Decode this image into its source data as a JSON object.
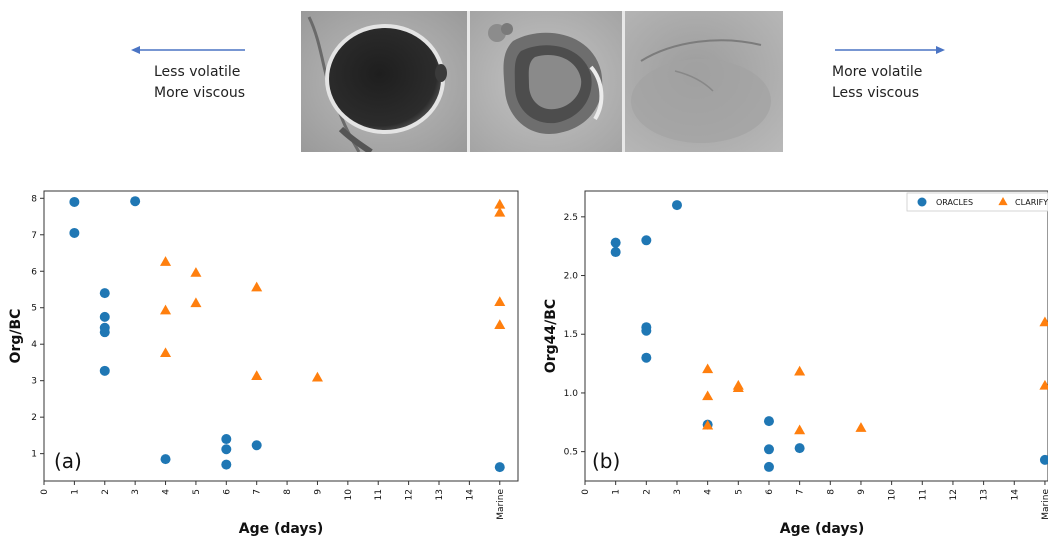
{
  "header": {
    "left_arrow": {
      "line1": "Less volatile",
      "line2": "More viscous"
    },
    "right_arrow": {
      "line1": "More volatile",
      "line2": "Less viscous"
    },
    "arrow_color": "#4a74c4",
    "images": [
      "dark-round-particle",
      "partially-evaporated-particle",
      "faint-spread-particle"
    ]
  },
  "chart_data": [
    {
      "type": "scatter",
      "panel_label": "(a)",
      "xlabel": "Age (days)",
      "ylabel": "Org/BC",
      "xlim": [
        0,
        15.6
      ],
      "ylim": [
        0.25,
        8.2
      ],
      "x_ticks": [
        "0",
        "1",
        "2",
        "3",
        "4",
        "5",
        "6",
        "7",
        "8",
        "9",
        "10",
        "11",
        "12",
        "13",
        "14",
        "Marine"
      ],
      "x_tick_values": [
        0,
        1,
        2,
        3,
        4,
        5,
        6,
        7,
        8,
        9,
        10,
        11,
        12,
        13,
        14,
        15
      ],
      "y_ticks": [
        1,
        2,
        3,
        4,
        5,
        6,
        7,
        8
      ],
      "legend": null,
      "series": [
        {
          "name": "ORACLES",
          "marker": "circle",
          "color": "#1f77b4",
          "points": [
            [
              1,
              7.9
            ],
            [
              1,
              7.05
            ],
            [
              2,
              5.4
            ],
            [
              2,
              4.75
            ],
            [
              2,
              4.45
            ],
            [
              2,
              4.33
            ],
            [
              2,
              3.27
            ],
            [
              3,
              7.92
            ],
            [
              4,
              0.85
            ],
            [
              6,
              1.4
            ],
            [
              6,
              1.12
            ],
            [
              6,
              0.7
            ],
            [
              7,
              1.23
            ],
            [
              15,
              0.63
            ]
          ]
        },
        {
          "name": "CLARIFY",
          "marker": "triangle",
          "color": "#ff7f0e",
          "points": [
            [
              4,
              6.25
            ],
            [
              4,
              4.92
            ],
            [
              4,
              3.75
            ],
            [
              5,
              5.95
            ],
            [
              5,
              5.12
            ],
            [
              7,
              5.55
            ],
            [
              7,
              3.12
            ],
            [
              9,
              3.08
            ],
            [
              15,
              7.82
            ],
            [
              15,
              7.6
            ],
            [
              15,
              5.15
            ],
            [
              15,
              4.52
            ]
          ]
        }
      ]
    },
    {
      "type": "scatter",
      "panel_label": "(b)",
      "xlabel": "Age (days)",
      "ylabel": "Org44/BC",
      "xlim": [
        0,
        15.1
      ],
      "ylim": [
        0.25,
        2.72
      ],
      "x_ticks": [
        "0",
        "1",
        "2",
        "3",
        "4",
        "5",
        "6",
        "7",
        "8",
        "9",
        "10",
        "11",
        "12",
        "13",
        "14",
        "Marine"
      ],
      "x_tick_values": [
        0,
        1,
        2,
        3,
        4,
        5,
        6,
        7,
        8,
        9,
        10,
        11,
        12,
        13,
        14,
        15
      ],
      "y_ticks": [
        0.5,
        1.0,
        1.5,
        2.0,
        2.5
      ],
      "y_tick_labels": [
        "0.5",
        "1.0",
        "1.5",
        "2.0",
        "2.5"
      ],
      "legend": {
        "placement": "top-right",
        "entries": [
          "ORACLES",
          "CLARIFY"
        ]
      },
      "series": [
        {
          "name": "ORACLES",
          "marker": "circle",
          "color": "#1f77b4",
          "points": [
            [
              1,
              2.28
            ],
            [
              1,
              2.2
            ],
            [
              2,
              2.3
            ],
            [
              2,
              1.56
            ],
            [
              2,
              1.53
            ],
            [
              2,
              1.3
            ],
            [
              3,
              2.6
            ],
            [
              4,
              0.73
            ],
            [
              6,
              0.76
            ],
            [
              6,
              0.52
            ],
            [
              6,
              0.37
            ],
            [
              7,
              0.53
            ],
            [
              15,
              0.43
            ]
          ]
        },
        {
          "name": "CLARIFY",
          "marker": "triangle",
          "color": "#ff7f0e",
          "points": [
            [
              4,
              1.2
            ],
            [
              4,
              0.97
            ],
            [
              4,
              0.72
            ],
            [
              5,
              1.06
            ],
            [
              5,
              1.04
            ],
            [
              7,
              1.18
            ],
            [
              7,
              0.68
            ],
            [
              9,
              0.7
            ],
            [
              15,
              1.6
            ],
            [
              15,
              1.06
            ]
          ]
        }
      ]
    }
  ]
}
